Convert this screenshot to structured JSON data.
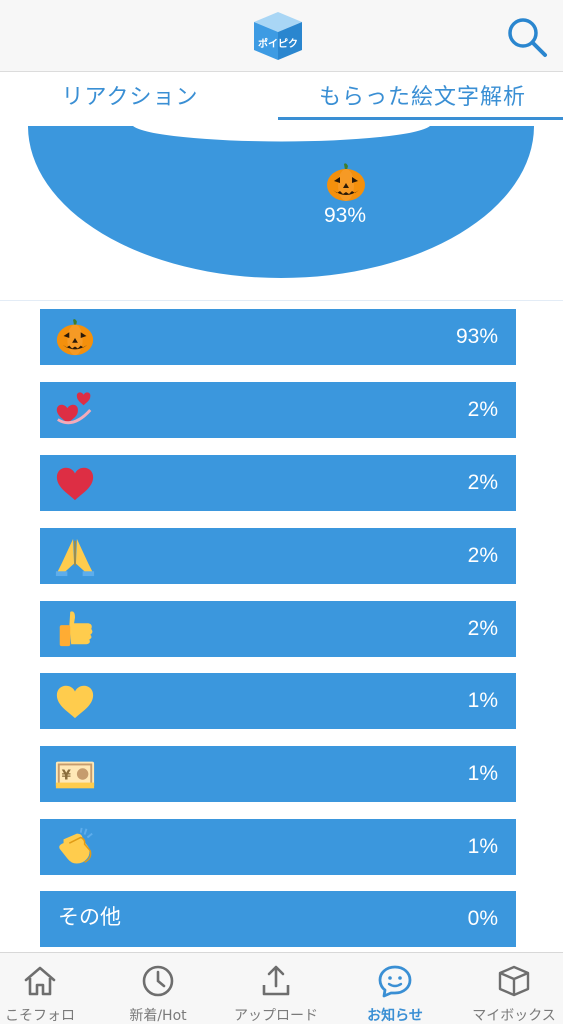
{
  "tabs": {
    "reaction": "リアクション",
    "emoji_analysis": "もらった絵文字解析"
  },
  "logo": {
    "text": "ポイピク"
  },
  "chart_data": {
    "type": "pie",
    "slices": [
      {
        "emoji": "jack-o-lantern",
        "value": 93
      },
      {
        "emoji": "revolving-hearts",
        "value": 2
      },
      {
        "emoji": "red-heart",
        "value": 2
      },
      {
        "emoji": "folded-hands",
        "value": 2
      },
      {
        "emoji": "thumbs-up",
        "value": 2
      },
      {
        "emoji": "yellow-heart",
        "value": 1
      },
      {
        "emoji": "yen-banknote",
        "value": 1
      },
      {
        "emoji": "clapping-hands",
        "value": 1
      },
      {
        "label": "その他",
        "value": 0
      }
    ],
    "center_label": "93%"
  },
  "bars": [
    {
      "emoji": "jack-o-lantern",
      "pct": "93%"
    },
    {
      "emoji": "revolving-hearts",
      "pct": "2%"
    },
    {
      "emoji": "red-heart",
      "pct": "2%"
    },
    {
      "emoji": "folded-hands",
      "pct": "2%"
    },
    {
      "emoji": "thumbs-up",
      "pct": "2%"
    },
    {
      "emoji": "yellow-heart",
      "pct": "1%"
    },
    {
      "emoji": "yen-banknote",
      "pct": "1%"
    },
    {
      "emoji": "clapping-hands",
      "pct": "1%"
    },
    {
      "label": "その他",
      "pct": "0%"
    }
  ],
  "nav": {
    "home": "こそフォロ",
    "new_hot": "新着/Hot",
    "upload": "アップロード",
    "notifications": "お知らせ",
    "mybox": "マイボックス"
  },
  "colors": {
    "accent": "#3a8fd4",
    "bar": "#3b97dd",
    "donut": "#3b97dd"
  }
}
